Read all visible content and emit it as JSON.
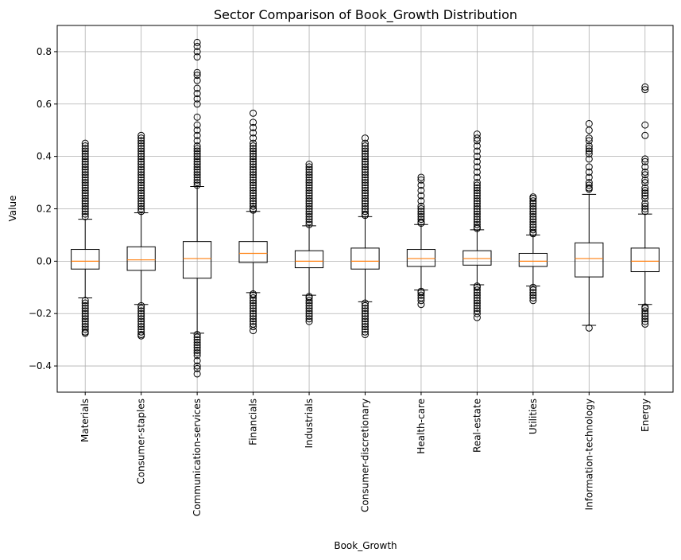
{
  "chart_data": {
    "type": "box",
    "title": "Sector Comparison of Book_Growth Distribution",
    "xlabel": "Book_Growth",
    "ylabel": "Value",
    "ylim": [
      -0.5,
      0.9
    ],
    "yticks": [
      -0.4,
      -0.2,
      0.0,
      0.2,
      0.4,
      0.6,
      0.8
    ],
    "ytick_labels": [
      "−0.4",
      "−0.2",
      "0.0",
      "0.2",
      "0.4",
      "0.6",
      "0.8"
    ],
    "grid": true,
    "categories": [
      "Materials",
      "Consumer-staples",
      "Communication-services",
      "Financials",
      "Industrials",
      "Consumer-discretionary",
      "Health-care",
      "Real-estate",
      "Utilities",
      "Information-technology",
      "Energy"
    ],
    "boxes": [
      {
        "q1": -0.03,
        "median": 0.0,
        "q3": 0.045,
        "whislo": -0.14,
        "whishi": 0.16,
        "fliers_low": [
          -0.15,
          -0.16,
          -0.17,
          -0.18,
          -0.19,
          -0.2,
          -0.21,
          -0.22,
          -0.23,
          -0.24,
          -0.25,
          -0.26,
          -0.27,
          -0.275
        ],
        "fliers_high": [
          0.17,
          0.18,
          0.19,
          0.2,
          0.21,
          0.22,
          0.23,
          0.24,
          0.25,
          0.26,
          0.27,
          0.28,
          0.29,
          0.3,
          0.31,
          0.32,
          0.33,
          0.34,
          0.35,
          0.36,
          0.37,
          0.38,
          0.39,
          0.4,
          0.41,
          0.42,
          0.43,
          0.44,
          0.45
        ]
      },
      {
        "q1": -0.035,
        "median": 0.005,
        "q3": 0.055,
        "whislo": -0.165,
        "whishi": 0.185,
        "fliers_low": [
          -0.17,
          -0.18,
          -0.19,
          -0.2,
          -0.21,
          -0.22,
          -0.23,
          -0.24,
          -0.25,
          -0.26,
          -0.27,
          -0.28,
          -0.285
        ],
        "fliers_high": [
          0.19,
          0.2,
          0.21,
          0.22,
          0.23,
          0.24,
          0.25,
          0.26,
          0.27,
          0.28,
          0.29,
          0.3,
          0.31,
          0.32,
          0.33,
          0.34,
          0.35,
          0.36,
          0.37,
          0.38,
          0.39,
          0.4,
          0.41,
          0.42,
          0.43,
          0.44,
          0.45,
          0.46,
          0.47,
          0.48
        ]
      },
      {
        "q1": -0.065,
        "median": 0.01,
        "q3": 0.075,
        "whislo": -0.275,
        "whishi": 0.285,
        "fliers_low": [
          -0.28,
          -0.29,
          -0.3,
          -0.31,
          -0.32,
          -0.33,
          -0.34,
          -0.35,
          -0.36,
          -0.38,
          -0.4,
          -0.41,
          -0.43
        ],
        "fliers_high": [
          0.29,
          0.3,
          0.31,
          0.32,
          0.33,
          0.34,
          0.35,
          0.36,
          0.37,
          0.38,
          0.39,
          0.4,
          0.41,
          0.42,
          0.43,
          0.44,
          0.46,
          0.48,
          0.5,
          0.52,
          0.55,
          0.6,
          0.62,
          0.64,
          0.66,
          0.69,
          0.71,
          0.72,
          0.78,
          0.8,
          0.82,
          0.835
        ]
      },
      {
        "q1": -0.005,
        "median": 0.03,
        "q3": 0.075,
        "whislo": -0.12,
        "whishi": 0.19,
        "fliers_low": [
          -0.125,
          -0.13,
          -0.14,
          -0.15,
          -0.16,
          -0.17,
          -0.18,
          -0.19,
          -0.2,
          -0.21,
          -0.22,
          -0.23,
          -0.24,
          -0.25,
          -0.265
        ],
        "fliers_high": [
          0.195,
          0.2,
          0.21,
          0.22,
          0.23,
          0.24,
          0.25,
          0.26,
          0.27,
          0.28,
          0.29,
          0.3,
          0.31,
          0.32,
          0.33,
          0.34,
          0.35,
          0.36,
          0.37,
          0.38,
          0.39,
          0.4,
          0.41,
          0.42,
          0.43,
          0.44,
          0.45,
          0.47,
          0.49,
          0.51,
          0.53,
          0.565
        ]
      },
      {
        "q1": -0.025,
        "median": 0.0,
        "q3": 0.04,
        "whislo": -0.13,
        "whishi": 0.135,
        "fliers_low": [
          -0.135,
          -0.14,
          -0.15,
          -0.16,
          -0.17,
          -0.18,
          -0.19,
          -0.2,
          -0.21,
          -0.22,
          -0.23
        ],
        "fliers_high": [
          0.14,
          0.15,
          0.16,
          0.17,
          0.18,
          0.19,
          0.2,
          0.21,
          0.22,
          0.23,
          0.24,
          0.25,
          0.26,
          0.27,
          0.28,
          0.29,
          0.3,
          0.31,
          0.32,
          0.33,
          0.34,
          0.35,
          0.36,
          0.37
        ]
      },
      {
        "q1": -0.03,
        "median": 0.0,
        "q3": 0.05,
        "whislo": -0.155,
        "whishi": 0.17,
        "fliers_low": [
          -0.16,
          -0.17,
          -0.18,
          -0.19,
          -0.2,
          -0.21,
          -0.22,
          -0.23,
          -0.24,
          -0.25,
          -0.26,
          -0.27,
          -0.28
        ],
        "fliers_high": [
          0.175,
          0.18,
          0.19,
          0.2,
          0.21,
          0.22,
          0.23,
          0.24,
          0.25,
          0.26,
          0.27,
          0.28,
          0.29,
          0.3,
          0.31,
          0.32,
          0.33,
          0.34,
          0.35,
          0.36,
          0.37,
          0.38,
          0.39,
          0.4,
          0.41,
          0.42,
          0.43,
          0.44,
          0.45,
          0.47
        ]
      },
      {
        "q1": -0.02,
        "median": 0.01,
        "q3": 0.045,
        "whislo": -0.11,
        "whishi": 0.14,
        "fliers_low": [
          -0.115,
          -0.12,
          -0.13,
          -0.14,
          -0.15,
          -0.165
        ],
        "fliers_high": [
          0.145,
          0.15,
          0.16,
          0.17,
          0.18,
          0.19,
          0.2,
          0.21,
          0.23,
          0.25,
          0.27,
          0.29,
          0.31,
          0.32
        ]
      },
      {
        "q1": -0.015,
        "median": 0.01,
        "q3": 0.04,
        "whislo": -0.09,
        "whishi": 0.12,
        "fliers_low": [
          -0.095,
          -0.1,
          -0.11,
          -0.12,
          -0.13,
          -0.14,
          -0.15,
          -0.16,
          -0.17,
          -0.18,
          -0.19,
          -0.2,
          -0.215
        ],
        "fliers_high": [
          0.125,
          0.13,
          0.14,
          0.15,
          0.16,
          0.17,
          0.18,
          0.19,
          0.2,
          0.21,
          0.22,
          0.23,
          0.24,
          0.25,
          0.26,
          0.27,
          0.28,
          0.29,
          0.3,
          0.32,
          0.34,
          0.36,
          0.38,
          0.4,
          0.42,
          0.44,
          0.46,
          0.47,
          0.485
        ]
      },
      {
        "q1": -0.02,
        "median": 0.0,
        "q3": 0.03,
        "whislo": -0.095,
        "whishi": 0.1,
        "fliers_low": [
          -0.1,
          -0.11,
          -0.12,
          -0.13,
          -0.14,
          -0.15
        ],
        "fliers_high": [
          0.105,
          0.11,
          0.12,
          0.13,
          0.14,
          0.15,
          0.16,
          0.17,
          0.18,
          0.19,
          0.2,
          0.21,
          0.22,
          0.23,
          0.24,
          0.245
        ]
      },
      {
        "q1": -0.06,
        "median": 0.01,
        "q3": 0.07,
        "whislo": -0.245,
        "whishi": 0.255,
        "fliers_low": [
          -0.255
        ],
        "fliers_high": [
          0.275,
          0.28,
          0.29,
          0.3,
          0.32,
          0.34,
          0.36,
          0.39,
          0.41,
          0.42,
          0.43,
          0.44,
          0.46,
          0.47,
          0.5,
          0.525
        ]
      },
      {
        "q1": -0.04,
        "median": 0.0,
        "q3": 0.05,
        "whislo": -0.165,
        "whishi": 0.18,
        "fliers_low": [
          -0.175,
          -0.18,
          -0.19,
          -0.2,
          -0.21,
          -0.22,
          -0.23,
          -0.24
        ],
        "fliers_high": [
          0.19,
          0.2,
          0.21,
          0.22,
          0.24,
          0.25,
          0.26,
          0.27,
          0.28,
          0.3,
          0.31,
          0.33,
          0.34,
          0.36,
          0.38,
          0.39,
          0.48,
          0.52,
          0.655,
          0.665
        ]
      }
    ]
  }
}
